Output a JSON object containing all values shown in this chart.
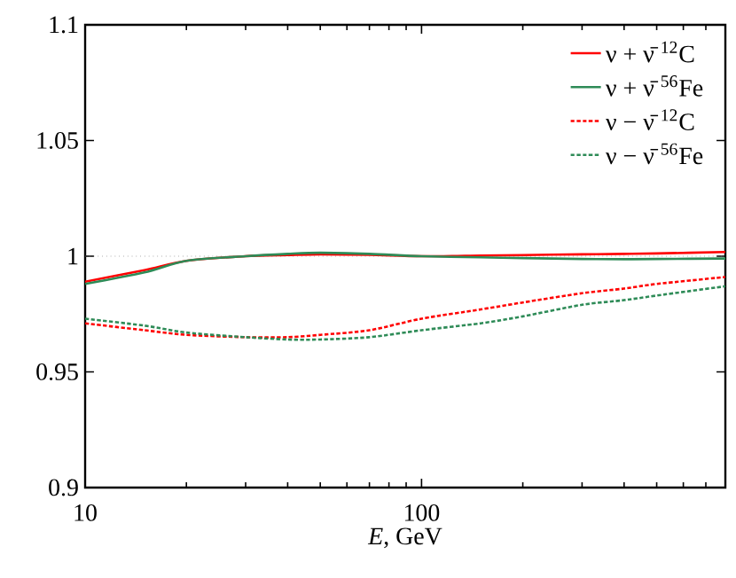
{
  "chart_data": {
    "type": "line",
    "xlabel": "*E*, GeV",
    "log": "x",
    "xlim": [
      10,
      800
    ],
    "ylim": [
      0.9,
      1.1
    ],
    "xticks": [
      10,
      {
        "value": 20,
        "label": null
      },
      {
        "value": 30,
        "label": null
      },
      {
        "value": 40,
        "label": null
      },
      {
        "value": 50,
        "label": null
      },
      {
        "value": 60,
        "label": null
      },
      {
        "value": 70,
        "label": null
      },
      {
        "value": 80,
        "label": null
      },
      {
        "value": 90,
        "label": null
      },
      100,
      {
        "value": 200,
        "label": null
      },
      {
        "value": 300,
        "label": null
      },
      {
        "value": 400,
        "label": null
      },
      {
        "value": 500,
        "label": null
      },
      {
        "value": 600,
        "label": null
      },
      {
        "value": 700,
        "label": null
      }
    ],
    "yticks": [
      0.9,
      0.95,
      1,
      1.05,
      1.1
    ],
    "legend": "top right",
    "marker": "none",
    "grid": false,
    "x": [
      10,
      15,
      20,
      30,
      40,
      50,
      70,
      100,
      150,
      200,
      300,
      400,
      500,
      800
    ],
    "ref_lines": [
      {
        "axis": "y",
        "value": 1,
        "color": "#808080",
        "line_style": "dotted"
      }
    ],
    "series": [
      {
        "name": "ν + ν̄ $^{12}$C",
        "color": "#ff0000",
        "line_style": "solid",
        "values": [
          0.989,
          0.994,
          0.998,
          1.0,
          1.0005,
          1.0008,
          1.0006,
          1.0,
          1.0003,
          1.0005,
          1.0008,
          1.001,
          1.0012,
          1.0018
        ]
      },
      {
        "name": "ν + ν̄ $^{56}$Fe",
        "color": "#2e8b57",
        "line_style": "solid",
        "values": [
          0.988,
          0.993,
          0.998,
          1.0,
          1.001,
          1.0015,
          1.001,
          1.0,
          0.9995,
          0.9992,
          0.9988,
          0.9987,
          0.9988,
          0.999
        ]
      },
      {
        "name": "ν − ν̄ $^{12}$C",
        "color": "#ff0000",
        "line_style": "dashed",
        "values": [
          0.971,
          0.968,
          0.966,
          0.965,
          0.965,
          0.966,
          0.968,
          0.973,
          0.977,
          0.98,
          0.984,
          0.986,
          0.988,
          0.991
        ]
      },
      {
        "name": "ν − ν̄ $^{56}$Fe",
        "color": "#2e8b57",
        "line_style": "dashed",
        "values": [
          0.973,
          0.97,
          0.967,
          0.965,
          0.964,
          0.964,
          0.965,
          0.968,
          0.971,
          0.974,
          0.979,
          0.981,
          0.983,
          0.987
        ]
      }
    ]
  }
}
